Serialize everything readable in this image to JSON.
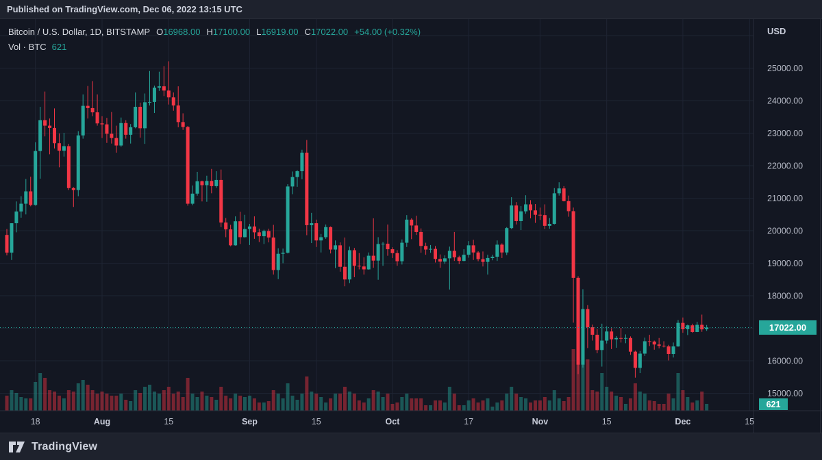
{
  "published_bar": {
    "text": "Published on TradingView.com, Dec 06, 2022 13:15 UTC"
  },
  "legend": {
    "symbol": "Bitcoin / U.S. Dollar, 1D, BITSTAMP",
    "ohlc": [
      {
        "label": "O",
        "value": "16968.00"
      },
      {
        "label": "H",
        "value": "17100.00"
      },
      {
        "label": "L",
        "value": "16919.00"
      },
      {
        "label": "C",
        "value": "17022.00"
      }
    ],
    "change": "+54.00 (+0.32%)",
    "volume_label": "Vol · BTC",
    "volume_value": "621"
  },
  "price_axis": {
    "unit": "USD",
    "labels": [
      {
        "price": 25000,
        "text": "25000.00"
      },
      {
        "price": 24000,
        "text": "24000.00"
      },
      {
        "price": 23000,
        "text": "23000.00"
      },
      {
        "price": 22000,
        "text": "22000.00"
      },
      {
        "price": 21000,
        "text": "21000.00"
      },
      {
        "price": 20000,
        "text": "20000.00"
      },
      {
        "price": 19000,
        "text": "19000.00"
      },
      {
        "price": 18000,
        "text": "18000.00"
      },
      {
        "price": 16000,
        "text": "16000.00"
      },
      {
        "price": 15000,
        "text": "15000.00"
      }
    ],
    "gridline_prices": [
      26000,
      25000,
      24000,
      23000,
      22000,
      21000,
      20000,
      19000,
      18000,
      17000,
      16000,
      15000
    ],
    "current_price_label": "17022.00",
    "current_volume_label": "621"
  },
  "time_axis": {
    "ticks": [
      {
        "label": "18",
        "i": 6,
        "bold": false
      },
      {
        "label": "Aug",
        "i": 20,
        "bold": true
      },
      {
        "label": "15",
        "i": 34,
        "bold": false
      },
      {
        "label": "Sep",
        "i": 51,
        "bold": true
      },
      {
        "label": "15",
        "i": 65,
        "bold": false
      },
      {
        "label": "Oct",
        "i": 81,
        "bold": true
      },
      {
        "label": "17",
        "i": 97,
        "bold": false
      },
      {
        "label": "Nov",
        "i": 112,
        "bold": true
      },
      {
        "label": "15",
        "i": 126,
        "bold": false
      },
      {
        "label": "Dec",
        "i": 142,
        "bold": true
      },
      {
        "label": "15",
        "i": 156,
        "bold": false
      }
    ]
  },
  "footer": {
    "brand": "TradingView"
  },
  "colors": {
    "up": "#26a69a",
    "down": "#f23645",
    "bg": "#131722",
    "panel": "#1e222d",
    "border": "#2a2e39",
    "grid": "#1e2433",
    "axis_text": "#b7bbc7",
    "badge_text": "#ffffff",
    "price_line": "#26a69a"
  },
  "chart_data": {
    "type": "candlestick+volume",
    "title": "Bitcoin / U.S. Dollar, 1D, BITSTAMP",
    "ylabel": "USD",
    "ylim": [
      14600,
      26100
    ],
    "x_unit": "day",
    "price_line_value": 17022.0,
    "last_volume": 621,
    "volume_units": "relative_px_height",
    "columns": [
      "date",
      "open",
      "high",
      "low",
      "close",
      "vol"
    ],
    "candles": [
      [
        "Jul 12",
        19870,
        20050,
        19240,
        19325,
        22
      ],
      [
        "Jul 13",
        19325,
        20230,
        19100,
        20230,
        30
      ],
      [
        "Jul 14",
        20230,
        20900,
        19950,
        20590,
        26
      ],
      [
        "Jul 15",
        20590,
        21060,
        20400,
        20830,
        20
      ],
      [
        "Jul 16",
        20830,
        21590,
        20500,
        21210,
        18
      ],
      [
        "Jul 17",
        21210,
        21660,
        20750,
        20790,
        18
      ],
      [
        "Jul 18",
        20790,
        22720,
        20770,
        22450,
        42
      ],
      [
        "Jul 19",
        22450,
        23810,
        21600,
        23400,
        55
      ],
      [
        "Jul 20",
        23400,
        24280,
        22900,
        23230,
        48
      ],
      [
        "Jul 21",
        23230,
        23450,
        22350,
        23160,
        30
      ],
      [
        "Jul 22",
        23160,
        23760,
        22530,
        22690,
        28
      ],
      [
        "Jul 23",
        22690,
        22990,
        21950,
        22460,
        22
      ],
      [
        "Jul 24",
        22460,
        23010,
        22280,
        22600,
        18
      ],
      [
        "Jul 25",
        22600,
        22670,
        21250,
        21310,
        30
      ],
      [
        "Jul 26",
        21310,
        21340,
        20730,
        21250,
        28
      ],
      [
        "Jul 27",
        21250,
        23060,
        21060,
        22930,
        40
      ],
      [
        "Jul 28",
        22930,
        24190,
        22830,
        23840,
        45
      ],
      [
        "Jul 29",
        23840,
        24450,
        23450,
        23770,
        38
      ],
      [
        "Jul 30",
        23770,
        24600,
        23520,
        23640,
        30
      ],
      [
        "Jul 31",
        23640,
        24190,
        23230,
        23300,
        25
      ],
      [
        "Aug 1",
        23300,
        23520,
        22850,
        23270,
        28
      ],
      [
        "Aug 2",
        23270,
        23470,
        22700,
        22980,
        25
      ],
      [
        "Aug 3",
        22980,
        23650,
        22680,
        22850,
        22
      ],
      [
        "Aug 4",
        22850,
        23230,
        22400,
        22620,
        22
      ],
      [
        "Aug 5",
        22620,
        23480,
        22580,
        23310,
        25
      ],
      [
        "Aug 6",
        23310,
        23400,
        22830,
        22950,
        16
      ],
      [
        "Aug 7",
        22950,
        23280,
        22680,
        23180,
        14
      ],
      [
        "Aug 8",
        23180,
        24250,
        23150,
        23810,
        30
      ],
      [
        "Aug 9",
        23810,
        23940,
        22860,
        23150,
        26
      ],
      [
        "Aug 10",
        23150,
        24220,
        22670,
        23950,
        35
      ],
      [
        "Aug 11",
        23950,
        24910,
        23850,
        23960,
        38
      ],
      [
        "Aug 12",
        23960,
        24460,
        23620,
        24400,
        28
      ],
      [
        "Aug 13",
        24400,
        24890,
        24300,
        24440,
        25
      ],
      [
        "Aug 14",
        24440,
        25060,
        24140,
        24310,
        30
      ],
      [
        "Aug 15",
        24310,
        25210,
        23880,
        24100,
        35
      ],
      [
        "Aug 16",
        24100,
        24250,
        23690,
        23850,
        25
      ],
      [
        "Aug 17",
        23850,
        24440,
        23180,
        23340,
        28
      ],
      [
        "Aug 18",
        23340,
        23610,
        23100,
        23190,
        20
      ],
      [
        "Aug 19",
        23190,
        23220,
        20770,
        20830,
        48
      ],
      [
        "Aug 20",
        20830,
        21390,
        20780,
        21140,
        25
      ],
      [
        "Aug 21",
        21140,
        21810,
        21080,
        21520,
        20
      ],
      [
        "Aug 22",
        21520,
        21540,
        20900,
        21400,
        28
      ],
      [
        "Aug 23",
        21400,
        21690,
        20890,
        21530,
        22
      ],
      [
        "Aug 24",
        21530,
        21900,
        21150,
        21370,
        20
      ],
      [
        "Aug 25",
        21370,
        21830,
        21320,
        21560,
        16
      ],
      [
        "Aug 26",
        21560,
        21880,
        20110,
        20250,
        35
      ],
      [
        "Aug 27",
        20250,
        20390,
        19800,
        20040,
        22
      ],
      [
        "Aug 28",
        20040,
        20180,
        19520,
        19550,
        18
      ],
      [
        "Aug 29",
        19550,
        20440,
        19540,
        20290,
        25
      ],
      [
        "Aug 30",
        20290,
        20580,
        19590,
        19800,
        22
      ],
      [
        "Aug 31",
        19800,
        20490,
        19790,
        20050,
        20
      ],
      [
        "Sep 1",
        20050,
        20210,
        19560,
        20130,
        22
      ],
      [
        "Sep 2",
        20130,
        20440,
        19750,
        19950,
        18
      ],
      [
        "Sep 3",
        19950,
        20060,
        19650,
        19830,
        12
      ],
      [
        "Sep 4",
        19830,
        20030,
        19590,
        19990,
        12
      ],
      [
        "Sep 5",
        19990,
        20060,
        19640,
        19790,
        14
      ],
      [
        "Sep 6",
        19790,
        20180,
        18650,
        18790,
        30
      ],
      [
        "Sep 7",
        18790,
        19460,
        18510,
        19290,
        25
      ],
      [
        "Sep 8",
        19290,
        19450,
        19000,
        19320,
        18
      ],
      [
        "Sep 9",
        19320,
        21430,
        19300,
        21360,
        40
      ],
      [
        "Sep 10",
        21360,
        21820,
        21120,
        21650,
        22
      ],
      [
        "Sep 11",
        21650,
        21860,
        21350,
        21830,
        16
      ],
      [
        "Sep 12",
        21830,
        22490,
        21580,
        22400,
        25
      ],
      [
        "Sep 13",
        22400,
        22790,
        19860,
        20170,
        50
      ],
      [
        "Sep 14",
        20170,
        20550,
        19620,
        20230,
        28
      ],
      [
        "Sep 15",
        20230,
        20340,
        19500,
        19700,
        25
      ],
      [
        "Sep 16",
        19700,
        19900,
        19330,
        19800,
        20
      ],
      [
        "Sep 17",
        19800,
        20190,
        19750,
        20110,
        12
      ],
      [
        "Sep 18",
        20110,
        20130,
        19300,
        19420,
        18
      ],
      [
        "Sep 19",
        19420,
        19700,
        18850,
        19550,
        25
      ],
      [
        "Sep 20",
        19550,
        19640,
        18740,
        18890,
        25
      ],
      [
        "Sep 21",
        18890,
        19790,
        18290,
        18500,
        35
      ],
      [
        "Sep 22",
        18500,
        19510,
        18390,
        19400,
        28
      ],
      [
        "Sep 23",
        19400,
        19470,
        18570,
        18920,
        25
      ],
      [
        "Sep 24",
        18920,
        19310,
        18810,
        18900,
        15
      ],
      [
        "Sep 25",
        18900,
        19180,
        18650,
        18810,
        12
      ],
      [
        "Sep 26",
        18810,
        19330,
        18800,
        19230,
        18
      ],
      [
        "Sep 27",
        19230,
        20380,
        18860,
        19080,
        30
      ],
      [
        "Sep 28",
        19080,
        19800,
        18490,
        19590,
        28
      ],
      [
        "Sep 29",
        19590,
        19650,
        18920,
        19600,
        20
      ],
      [
        "Sep 30",
        19600,
        20190,
        19230,
        19430,
        25
      ],
      [
        "Oct 1",
        19430,
        19490,
        19160,
        19310,
        10
      ],
      [
        "Oct 2",
        19310,
        19400,
        18920,
        19060,
        12
      ],
      [
        "Oct 3",
        19060,
        19730,
        18960,
        19630,
        20
      ],
      [
        "Oct 4",
        19630,
        20480,
        19500,
        20340,
        25
      ],
      [
        "Oct 5",
        20340,
        20380,
        19740,
        20160,
        18
      ],
      [
        "Oct 6",
        20160,
        20460,
        19870,
        19960,
        18
      ],
      [
        "Oct 7",
        19960,
        20070,
        19320,
        19530,
        18
      ],
      [
        "Oct 8",
        19530,
        19630,
        19260,
        19420,
        8
      ],
      [
        "Oct 9",
        19420,
        19560,
        19320,
        19440,
        8
      ],
      [
        "Oct 10",
        19440,
        19530,
        19020,
        19130,
        15
      ],
      [
        "Oct 11",
        19130,
        19270,
        18860,
        19050,
        15
      ],
      [
        "Oct 12",
        19050,
        19240,
        18980,
        19150,
        12
      ],
      [
        "Oct 13",
        19150,
        19510,
        18190,
        19380,
        35
      ],
      [
        "Oct 14",
        19380,
        19960,
        19070,
        19180,
        25
      ],
      [
        "Oct 15",
        19180,
        19230,
        18970,
        19070,
        8
      ],
      [
        "Oct 16",
        19070,
        19430,
        19060,
        19260,
        8
      ],
      [
        "Oct 17",
        19260,
        19680,
        19170,
        19550,
        15
      ],
      [
        "Oct 18",
        19550,
        19720,
        19100,
        19330,
        18
      ],
      [
        "Oct 19",
        19330,
        19370,
        19060,
        19125,
        12
      ],
      [
        "Oct 20",
        19125,
        19360,
        18900,
        19040,
        15
      ],
      [
        "Oct 21",
        19040,
        19260,
        18650,
        19160,
        18
      ],
      [
        "Oct 22",
        19160,
        19260,
        19090,
        19200,
        6
      ],
      [
        "Oct 23",
        19200,
        19700,
        19070,
        19570,
        12
      ],
      [
        "Oct 24",
        19570,
        19610,
        19160,
        19330,
        15
      ],
      [
        "Oct 25",
        19330,
        20110,
        19250,
        20080,
        25
      ],
      [
        "Oct 26",
        20080,
        21030,
        20050,
        20775,
        35
      ],
      [
        "Oct 27",
        20775,
        20880,
        20190,
        20295,
        25
      ],
      [
        "Oct 28",
        20295,
        20760,
        20020,
        20595,
        20
      ],
      [
        "Oct 29",
        20595,
        21090,
        20520,
        20810,
        18
      ],
      [
        "Oct 30",
        20810,
        20940,
        20380,
        20625,
        12
      ],
      [
        "Oct 31",
        20625,
        20820,
        20240,
        20490,
        15
      ],
      [
        "Nov 1",
        20490,
        20710,
        20330,
        20480,
        15
      ],
      [
        "Nov 2",
        20480,
        20810,
        20050,
        20150,
        20
      ],
      [
        "Nov 3",
        20150,
        20390,
        20060,
        20210,
        15
      ],
      [
        "Nov 4",
        20210,
        21310,
        20190,
        21150,
        30
      ],
      [
        "Nov 5",
        21150,
        21490,
        21080,
        21300,
        18
      ],
      [
        "Nov 6",
        21300,
        21370,
        20900,
        20910,
        14
      ],
      [
        "Nov 7",
        20910,
        21080,
        20430,
        20600,
        20
      ],
      [
        "Nov 8",
        20600,
        20710,
        17170,
        18550,
        90
      ],
      [
        "Nov 9",
        18550,
        18600,
        15590,
        15880,
        145
      ],
      [
        "Nov 10",
        15880,
        18200,
        15790,
        17590,
        105
      ],
      [
        "Nov 11",
        17590,
        17710,
        16390,
        17030,
        75
      ],
      [
        "Nov 12",
        17030,
        17110,
        16620,
        16800,
        30
      ],
      [
        "Nov 13",
        16800,
        16970,
        16230,
        16330,
        28
      ],
      [
        "Nov 14",
        16330,
        17140,
        15820,
        16620,
        55
      ],
      [
        "Nov 15",
        16620,
        17060,
        16530,
        16900,
        35
      ],
      [
        "Nov 16",
        16900,
        17000,
        16360,
        16660,
        28
      ],
      [
        "Nov 17",
        16660,
        16760,
        16400,
        16700,
        22
      ],
      [
        "Nov 18",
        16700,
        17010,
        16560,
        16690,
        20
      ],
      [
        "Nov 19",
        16690,
        16810,
        16540,
        16700,
        10
      ],
      [
        "Nov 20",
        16700,
        16750,
        16180,
        16280,
        18
      ],
      [
        "Nov 21",
        16280,
        16310,
        15480,
        15780,
        40
      ],
      [
        "Nov 22",
        15780,
        16300,
        15620,
        16220,
        28
      ],
      [
        "Nov 23",
        16220,
        16710,
        16150,
        16600,
        25
      ],
      [
        "Nov 24",
        16600,
        16800,
        16450,
        16590,
        15
      ],
      [
        "Nov 25",
        16590,
        16620,
        16340,
        16500,
        14
      ],
      [
        "Nov 26",
        16500,
        16700,
        16380,
        16460,
        10
      ],
      [
        "Nov 27",
        16460,
        16600,
        16410,
        16440,
        10
      ],
      [
        "Nov 28",
        16440,
        16490,
        16010,
        16210,
        25
      ],
      [
        "Nov 29",
        16210,
        16560,
        16100,
        16440,
        18
      ],
      [
        "Nov 30",
        16440,
        17250,
        16430,
        17165,
        55
      ],
      [
        "Dec 1",
        17165,
        17330,
        16860,
        16970,
        30
      ],
      [
        "Dec 2",
        16970,
        17110,
        16790,
        17090,
        20
      ],
      [
        "Dec 3",
        17090,
        17140,
        16860,
        16885,
        12
      ],
      [
        "Dec 4",
        16885,
        17200,
        16880,
        17105,
        15
      ],
      [
        "Dec 5",
        17105,
        17420,
        16890,
        16965,
        28
      ],
      [
        "Dec 6",
        16968,
        17100,
        16919,
        17022,
        10
      ]
    ]
  }
}
